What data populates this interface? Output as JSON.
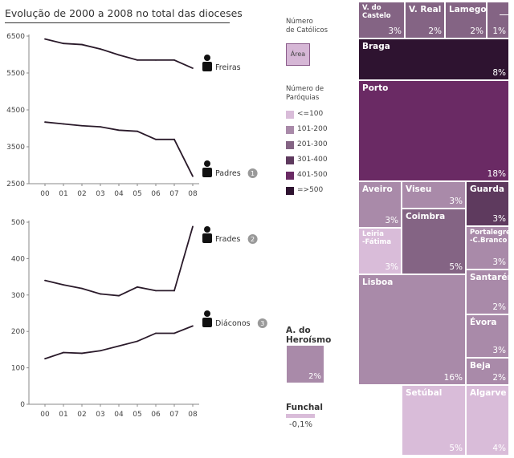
{
  "title": "Evolução de 2000 a 2008 no total das dioceses",
  "legend": {
    "catolicos_title": "Número\nde Católicos",
    "area_label": "Área",
    "paroquias_title": "Número de\nParóquias",
    "paroquias": [
      {
        "label": "<=100",
        "color": "#d9bcd9"
      },
      {
        "label": "101-200",
        "color": "#a98aa9"
      },
      {
        "label": "201-300",
        "color": "#846484"
      },
      {
        "label": "301-400",
        "color": "#5e3a5e"
      },
      {
        "label": "401-500",
        "color": "#6a2a64"
      },
      {
        "label": "=>500",
        "color": "#2e1330"
      }
    ]
  },
  "chart_data": [
    {
      "type": "line",
      "x": [
        "00",
        "01",
        "02",
        "03",
        "04",
        "05",
        "06",
        "07",
        "08"
      ],
      "ylim": [
        2500,
        6500
      ],
      "yticks": [
        "6500",
        "5500",
        "4500",
        "3500",
        "2500"
      ],
      "series": [
        {
          "name": "Freiras",
          "values": [
            6420,
            6300,
            6270,
            6150,
            5990,
            5850,
            5850,
            5850,
            5630
          ]
        },
        {
          "name": "Padres",
          "values": [
            4170,
            4120,
            4070,
            4040,
            3950,
            3920,
            3700,
            3700,
            2700
          ],
          "note": "1"
        }
      ]
    },
    {
      "type": "line",
      "x": [
        "00",
        "01",
        "02",
        "03",
        "04",
        "05",
        "06",
        "07",
        "08"
      ],
      "ylim": [
        0,
        500
      ],
      "yticks": [
        "500",
        "400",
        "300",
        "200",
        "100",
        "0"
      ],
      "series": [
        {
          "name": "Frades",
          "values": [
            340,
            328,
            318,
            303,
            298,
            322,
            312,
            312,
            488
          ],
          "note": "2"
        },
        {
          "name": "Diáconos",
          "values": [
            125,
            142,
            140,
            147,
            160,
            173,
            195,
            195,
            215
          ],
          "note": "3"
        }
      ]
    },
    {
      "type": "treemap",
      "items": [
        {
          "name": "V. do\nCastelo",
          "pct": "3%",
          "color": "#846484"
        },
        {
          "name": "V. Real",
          "pct": "2%",
          "color": "#846484"
        },
        {
          "name": "Lamego",
          "pct": "2%",
          "color": "#846484"
        },
        {
          "name": "",
          "pct": "1%",
          "color": "#846484"
        },
        {
          "name": "Braga",
          "pct": "8%",
          "color": "#2e1330"
        },
        {
          "name": "Porto",
          "pct": "18%",
          "color": "#6a2a64"
        },
        {
          "name": "Aveiro",
          "pct": "3%",
          "color": "#a98aa9"
        },
        {
          "name": "Viseu",
          "pct": "3%",
          "color": "#a98aa9"
        },
        {
          "name": "Guarda",
          "pct": "3%",
          "color": "#5e3a5e"
        },
        {
          "name": "Coimbra",
          "pct": "5%",
          "color": "#846484"
        },
        {
          "name": "Leiria\n-Fátima",
          "pct": "3%",
          "color": "#d9bcd9"
        },
        {
          "name": "Portalegre\n-C.Branco",
          "pct": "3%",
          "color": "#a98aa9"
        },
        {
          "name": "Lisboa",
          "pct": "16%",
          "color": "#a98aa9"
        },
        {
          "name": "Santarém",
          "pct": "2%",
          "color": "#a98aa9"
        },
        {
          "name": "Évora",
          "pct": "3%",
          "color": "#a98aa9"
        },
        {
          "name": "Beja",
          "pct": "2%",
          "color": "#a98aa9"
        },
        {
          "name": "Setúbal",
          "pct": "5%",
          "color": "#d9bcd9"
        },
        {
          "name": "Algarve",
          "pct": "4%",
          "color": "#d9bcd9"
        },
        {
          "name": "A. do\nHeroísmo",
          "pct": "2%",
          "color": "#a98aa9"
        },
        {
          "name": "Funchal",
          "pct": "-0,1%",
          "color": "#d9bcd9"
        }
      ]
    }
  ]
}
